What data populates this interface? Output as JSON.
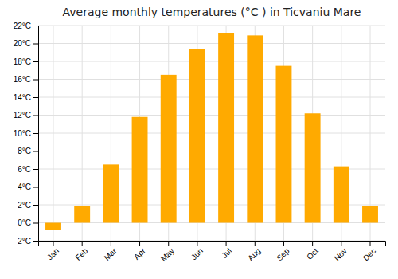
{
  "chart_data": {
    "type": "bar",
    "title": "Average monthly temperatures (°C ) in Ticvaniu Mare",
    "categories": [
      "Jan",
      "Feb",
      "Mar",
      "Apr",
      "May",
      "Jun",
      "Jul",
      "Aug",
      "Sep",
      "Oct",
      "Nov",
      "Dec"
    ],
    "values": [
      -0.8,
      1.9,
      6.5,
      11.8,
      16.5,
      19.4,
      21.2,
      20.9,
      17.5,
      12.2,
      6.3,
      1.9
    ],
    "color": "#FFAA00",
    "ylim": [
      -2,
      22
    ],
    "yticks": [
      {
        "value": -2,
        "label": "-2°C"
      },
      {
        "value": 0,
        "label": "0°C"
      },
      {
        "value": 2,
        "label": "2°C"
      },
      {
        "value": 4,
        "label": "4°C"
      },
      {
        "value": 6,
        "label": "6°C"
      },
      {
        "value": 8,
        "label": "8°C"
      },
      {
        "value": 10,
        "label": "10°C"
      },
      {
        "value": 12,
        "label": "12°C"
      },
      {
        "value": 14,
        "label": "14°C"
      },
      {
        "value": 16,
        "label": "16°C"
      },
      {
        "value": 18,
        "label": "18°C"
      },
      {
        "value": 20,
        "label": "20°C"
      },
      {
        "value": 22,
        "label": "22°C"
      }
    ],
    "grid": true
  }
}
